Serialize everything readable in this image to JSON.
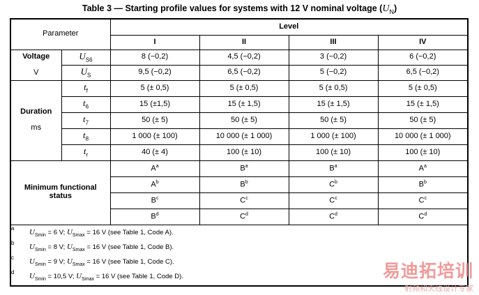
{
  "title": {
    "prefix": "Table 3 — Starting profile values for systems with 12 V nominal voltage (",
    "symbol": "U",
    "symbol_sub": "N",
    "suffix": ")"
  },
  "header": {
    "parameter": "Parameter",
    "level": "Level",
    "levels": [
      "I",
      "II",
      "III",
      "IV"
    ]
  },
  "voltage": {
    "label": "Voltage",
    "unit": "V",
    "rows": [
      {
        "sym": "U",
        "sub": "S6",
        "values": [
          "8 (−0,2)",
          "4,5 (−0,2)",
          "3 (−0,2)",
          "6 (−0,2)"
        ]
      },
      {
        "sym": "U",
        "sub": "S",
        "values": [
          "9,5 (−0,2)",
          "6,5 (−0,2)",
          "5 (−0,2)",
          "6,5 (−0,2)"
        ]
      }
    ]
  },
  "duration": {
    "label": "Duration",
    "unit": "ms",
    "rows": [
      {
        "sym": "t",
        "sub": "f",
        "values": [
          "5 (± 0,5)",
          "5 (± 0,5)",
          "5 (± 0,5)",
          "5 (± 0,5)"
        ]
      },
      {
        "sym": "t",
        "sub": "6",
        "values": [
          "15 (±1,5)",
          "15 (± 1,5)",
          "15 (± 1,5)",
          "15 (± 1,5)"
        ]
      },
      {
        "sym": "t",
        "sub": "7",
        "values": [
          "50 (± 5)",
          "50 (± 5)",
          "50 (± 5)",
          "50 (± 5)"
        ]
      },
      {
        "sym": "t",
        "sub": "8",
        "values": [
          "1 000 (± 100)",
          "10 000 (± 1 000)",
          "1 000 (± 100)",
          "10 000 (± 1 000)"
        ]
      },
      {
        "sym": "t",
        "sub": "r",
        "values": [
          "40 (± 4)",
          "100 (± 10)",
          "100 (± 10)",
          "100 (± 10)"
        ]
      }
    ]
  },
  "status": {
    "label_line1": "Minimum functional",
    "label_line2": "status",
    "rows": [
      [
        {
          "t": "A",
          "n": "a"
        },
        {
          "t": "B",
          "n": "a"
        },
        {
          "t": "B",
          "n": "a"
        },
        {
          "t": "A",
          "n": "a"
        }
      ],
      [
        {
          "t": "A",
          "n": "b"
        },
        {
          "t": "B",
          "n": "b"
        },
        {
          "t": "C",
          "n": "b"
        },
        {
          "t": "B",
          "n": "b"
        }
      ],
      [
        {
          "t": "B",
          "n": "c"
        },
        {
          "t": "C",
          "n": "c"
        },
        {
          "t": "C",
          "n": "c"
        },
        {
          "t": "C",
          "n": "c"
        }
      ],
      [
        {
          "t": "B",
          "n": "d"
        },
        {
          "t": "C",
          "n": "d"
        },
        {
          "t": "C",
          "n": "d"
        },
        {
          "t": "C",
          "n": "d"
        }
      ]
    ]
  },
  "notes": [
    {
      "mark": "a",
      "min_val": "6 V",
      "max_val": "16 V",
      "ref": "(see Table 1, Code A)."
    },
    {
      "mark": "b",
      "min_val": "8 V",
      "max_val": "16 V",
      "ref": "(see Table 1, Code B)."
    },
    {
      "mark": "c",
      "min_val": "9 V",
      "max_val": "16 V",
      "ref": "(see Table 1, Code C)."
    },
    {
      "mark": "d",
      "min_val": "10,5 V",
      "max_val": "16 V",
      "ref": "(see Table 1, Code D)."
    }
  ],
  "note_symbols": {
    "sym": "U",
    "min_sub": "Smin",
    "max_sub": "Smax"
  },
  "watermark": {
    "main": "易迪拓培训",
    "sub": "射频和天线设计专家"
  }
}
